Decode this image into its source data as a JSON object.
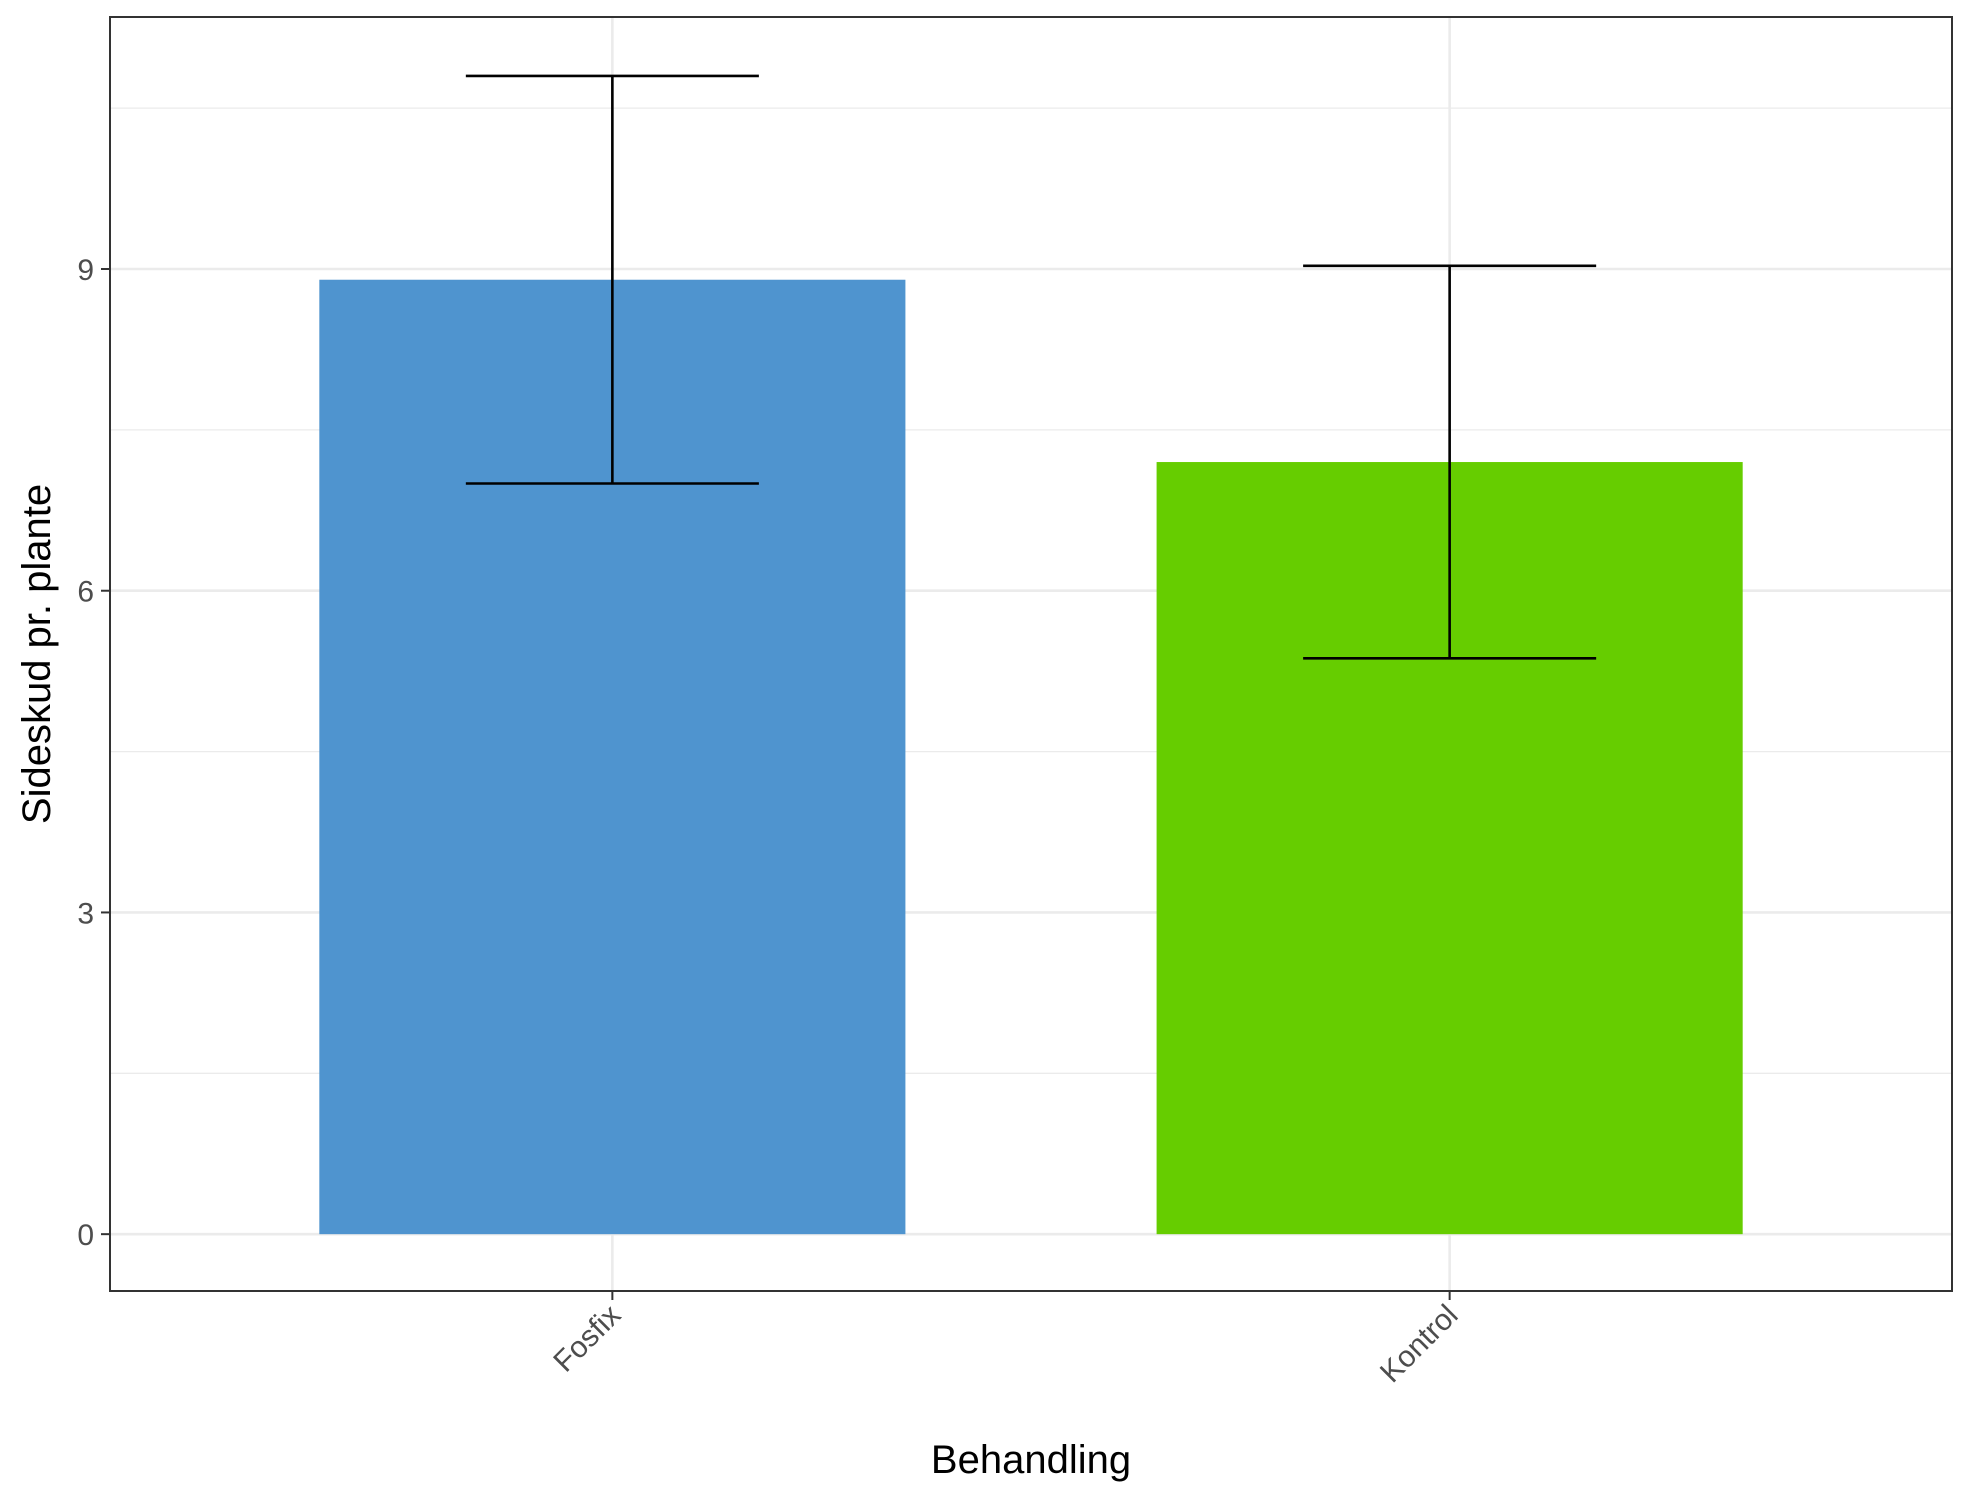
{
  "chart_data": {
    "type": "bar",
    "title": "",
    "xlabel": "Behandling",
    "ylabel": "Sideskud pr. plante",
    "categories": [
      "Fosfix",
      "Kontrol"
    ],
    "values": [
      8.9,
      7.2
    ],
    "error_bars": [
      {
        "low": 7.0,
        "high": 10.8
      },
      {
        "low": 5.37,
        "high": 9.03
      }
    ],
    "colors": [
      "#4f94cf",
      "#66cd00"
    ],
    "ylim": [
      -0.53,
      11.35
    ],
    "yticks": [
      0,
      3,
      6,
      9
    ],
    "yticks_minor": [
      1.5,
      4.5,
      7.5,
      10.5
    ],
    "ytick_labels": [
      "0",
      "3",
      "6",
      "9"
    ],
    "grid": true,
    "legend": "none",
    "xtick_rotation": 45
  }
}
